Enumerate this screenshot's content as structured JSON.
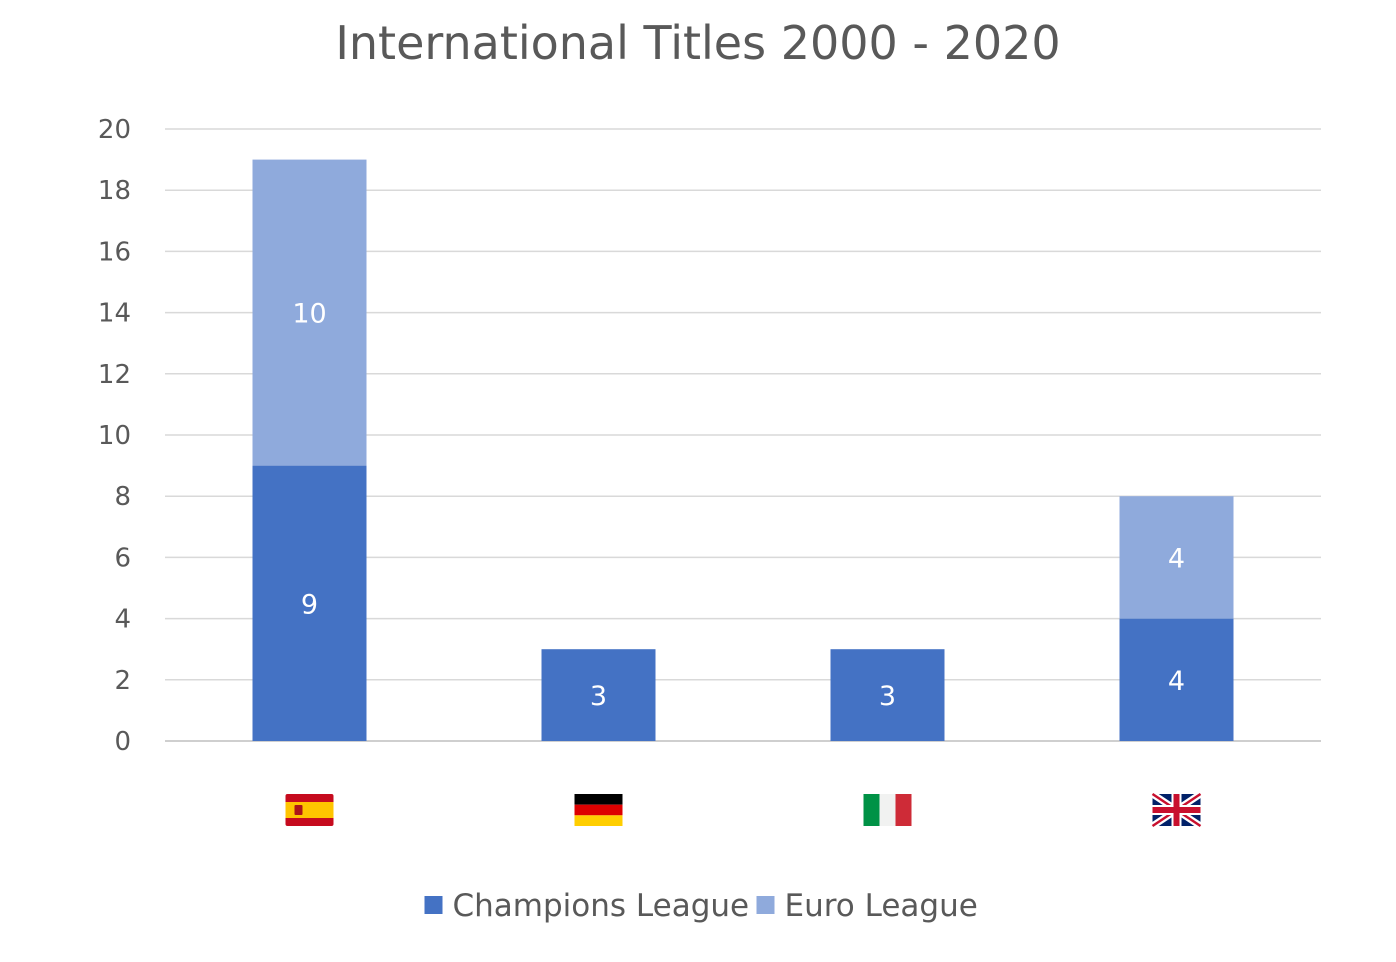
{
  "chart_data": {
    "type": "bar",
    "stacked": true,
    "title": "International Titles 2000 - 2020",
    "categories": [
      "Spain",
      "Germany",
      "Italy",
      "United Kingdom"
    ],
    "category_icons": [
      "spain-flag-icon",
      "germany-flag-icon",
      "italy-flag-icon",
      "uk-flag-icon"
    ],
    "series": [
      {
        "name": "Champions League",
        "values": [
          9,
          3,
          3,
          4
        ],
        "color": "#4472C4"
      },
      {
        "name": "Euro League",
        "values": [
          10,
          0,
          0,
          4
        ],
        "color": "#8FAADC"
      }
    ],
    "ylim": [
      0,
      20
    ],
    "yticks": [
      0,
      2,
      4,
      6,
      8,
      10,
      12,
      14,
      16,
      18,
      20
    ],
    "grid": true,
    "legend_position": "bottom",
    "data_labels": true
  }
}
